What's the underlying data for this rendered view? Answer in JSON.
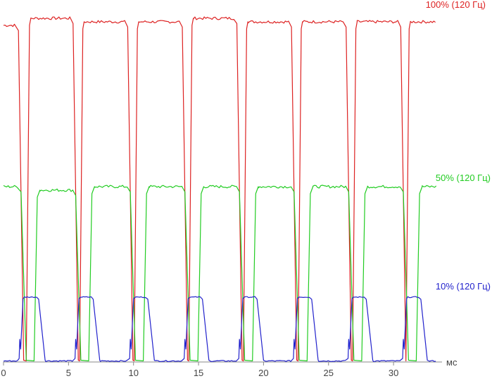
{
  "chart_data": {
    "type": "line",
    "title": "",
    "xlabel": "",
    "x_unit": "мс",
    "ylabel": "",
    "xlim": [
      0,
      34
    ],
    "ylim": [
      0,
      100
    ],
    "x_ticks": [
      0,
      5,
      10,
      15,
      20,
      25,
      30
    ],
    "grid": false,
    "legend": "inline-right",
    "period_ms": 8.33,
    "series": [
      {
        "name": "100% (120 Гц)",
        "color": "#dd2222",
        "pulses": [
          {
            "fall": 1.2,
            "rise": 2.0,
            "settled": 2.1
          },
          {
            "fall": 5.4,
            "rise": 6.1,
            "settled": 6.2
          },
          {
            "fall": 9.6,
            "rise": 10.3,
            "settled": 10.4
          },
          {
            "fall": 13.8,
            "rise": 14.5,
            "settled": 14.6
          },
          {
            "fall": 18.0,
            "rise": 18.7,
            "settled": 18.8
          },
          {
            "fall": 22.2,
            "rise": 22.9,
            "settled": 23.0
          },
          {
            "fall": 26.4,
            "rise": 27.1,
            "settled": 27.2
          },
          {
            "fall": 30.6,
            "rise": 31.2,
            "settled": 31.3
          }
        ],
        "high": [
          96,
          98,
          97,
          97,
          98,
          97,
          97,
          97,
          97
        ],
        "low": 0
      },
      {
        "name": "50% (120 Гц)",
        "color": "#22cc22",
        "pulses": [
          {
            "fall": 1.4,
            "rise": 2.6,
            "settled": 2.8
          },
          {
            "fall": 5.6,
            "rise": 6.8,
            "settled": 7.0
          },
          {
            "fall": 9.8,
            "rise": 11.0,
            "settled": 11.2
          },
          {
            "fall": 14.0,
            "rise": 15.2,
            "settled": 15.4
          },
          {
            "fall": 18.2,
            "rise": 19.4,
            "settled": 19.6
          },
          {
            "fall": 22.4,
            "rise": 23.6,
            "settled": 23.8
          },
          {
            "fall": 26.6,
            "rise": 27.8,
            "settled": 28.0
          },
          {
            "fall": 30.8,
            "rise": 32.0,
            "settled": 32.2
          }
        ],
        "high": [
          50,
          49,
          50,
          50,
          50,
          50,
          50,
          50,
          50
        ],
        "low": 0
      },
      {
        "name": "10% (120 Гц)",
        "color": "#2222cc",
        "pulses": [
          {
            "on": 1.2,
            "on_top": 1.5,
            "off": 2.6,
            "off_bottom": 3.2
          },
          {
            "on": 5.5,
            "on_top": 5.8,
            "off": 6.8,
            "off_bottom": 7.4
          },
          {
            "on": 9.7,
            "on_top": 10.0,
            "off": 11.0,
            "off_bottom": 11.6
          },
          {
            "on": 13.9,
            "on_top": 14.2,
            "off": 15.2,
            "off_bottom": 15.8
          },
          {
            "on": 18.1,
            "on_top": 18.4,
            "off": 19.4,
            "off_bottom": 20.0
          },
          {
            "on": 22.3,
            "on_top": 22.6,
            "off": 23.6,
            "off_bottom": 24.2
          },
          {
            "on": 26.5,
            "on_top": 26.8,
            "off": 27.8,
            "off_bottom": 28.4
          },
          {
            "on": 30.7,
            "on_top": 31.0,
            "off": 32.0,
            "off_bottom": 32.6
          }
        ],
        "high": 18.5,
        "low": 0
      }
    ]
  },
  "axis": {
    "color": "#888888",
    "label_color": "#444444"
  }
}
